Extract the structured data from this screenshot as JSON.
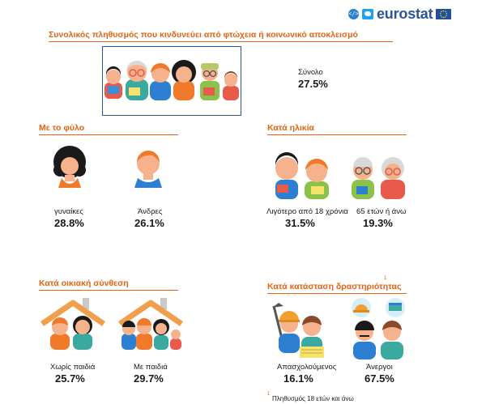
{
  "header": {
    "brand": "eurostat"
  },
  "total": {
    "title": "Συνολικός πληθυσμός που κινδυνεύει από φτώχεια ή κοινωνικό αποκλεισμό",
    "label": "Σύνολο",
    "value": "27.5%"
  },
  "by_sex": {
    "title": "Με το φύλο",
    "items": [
      {
        "label": "γυναίκες",
        "value": "28.8%"
      },
      {
        "label": "Άνδρες",
        "value": "26.1%"
      }
    ]
  },
  "by_age": {
    "title": "Κατά ηλικία",
    "items": [
      {
        "label": "Λιγότερο από 18 χρόνια",
        "value": "31.5%"
      },
      {
        "label": "65 ετών ή άνω",
        "value": "19.3%"
      }
    ]
  },
  "by_household": {
    "title": "Κατά οικιακή σύνθεση",
    "items": [
      {
        "label": "Χωρίς παιδιά",
        "value": "25.7%"
      },
      {
        "label": "Με παιδιά",
        "value": "29.7%"
      }
    ]
  },
  "by_activity": {
    "title": "Κατά κατάσταση δραστηριότητας",
    "superscript": "1",
    "items": [
      {
        "label": "Απασχολούμενος",
        "value": "16.1%"
      },
      {
        "label": "Άνεργοι",
        "value": "67.5%"
      }
    ],
    "footnote_marker": "1",
    "footnote": "Πληθυσμός 18 ετών και άνω"
  },
  "colors": {
    "accent": "#e36414",
    "brand_blue": "#2a5698",
    "skin": "#f5b28c",
    "hair_black": "#1a1a1a",
    "hair_orange": "#f07a2a",
    "roof": "#f0a04b"
  },
  "icons": [
    "code-icon",
    "twitter-icon",
    "eu-flag-icon"
  ]
}
